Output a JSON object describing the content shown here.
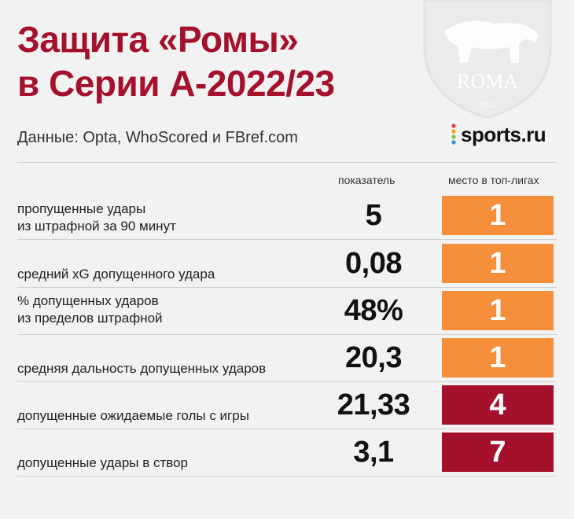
{
  "title": {
    "line1": "Защита «Ромы»",
    "line2": "в Серии А-2022/23"
  },
  "subtitle": "Данные: Opta, WhoScored и FBref.com",
  "brand": {
    "text": "sports.ru"
  },
  "crest": {
    "text": "ROMA",
    "year": "1927"
  },
  "columns": {
    "value": "показатель",
    "rank": "место в топ-лигах"
  },
  "colors": {
    "title": "#a5112c",
    "rank_orange": "#f68f3c",
    "rank_red": "#a5112c"
  },
  "rows": [
    {
      "label_line1": "пропущенные удары",
      "label_line2": "из штрафной за 90 минут",
      "value": "5",
      "rank": "1",
      "rank_color": "#f68f3c"
    },
    {
      "label_line1": "",
      "label_line2": "средний xG допущенного удара",
      "value": "0,08",
      "rank": "1",
      "rank_color": "#f68f3c"
    },
    {
      "label_line1": "% допущенных ударов",
      "label_line2": "из пределов штрафной",
      "value": "48%",
      "rank": "1",
      "rank_color": "#f68f3c"
    },
    {
      "label_line1": "",
      "label_line2": "средняя дальность допущенных ударов",
      "value": "20,3",
      "rank": "1",
      "rank_color": "#f68f3c"
    },
    {
      "label_line1": "",
      "label_line2": "допущенные ожидаемые голы с игры",
      "value": "21,33",
      "rank": "4",
      "rank_color": "#a5112c"
    },
    {
      "label_line1": "",
      "label_line2": "допущенные удары в створ",
      "value": "3,1",
      "rank": "7",
      "rank_color": "#a5112c"
    }
  ]
}
